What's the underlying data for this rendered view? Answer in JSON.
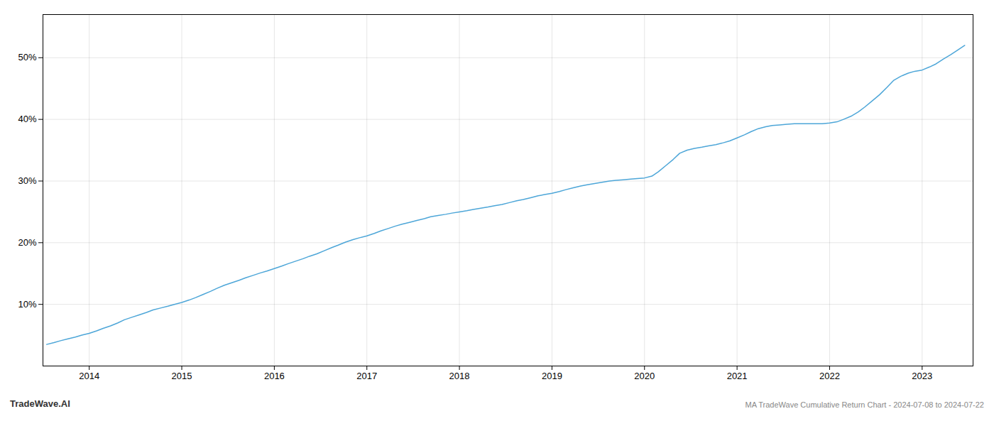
{
  "chart_data": {
    "type": "line",
    "title": "MA TradeWave Cumulative Return Chart - 2024-07-08 to 2024-07-22",
    "annotations": [
      "TradeWave.AI"
    ],
    "x": [
      2013.54,
      2013.62,
      2013.69,
      2013.77,
      2013.85,
      2013.92,
      2014.0,
      2014.08,
      2014.15,
      2014.23,
      2014.31,
      2014.38,
      2014.46,
      2014.54,
      2014.62,
      2014.69,
      2014.77,
      2014.85,
      2014.92,
      2015.0,
      2015.08,
      2015.15,
      2015.23,
      2015.31,
      2015.38,
      2015.46,
      2015.54,
      2015.62,
      2015.69,
      2015.77,
      2015.85,
      2015.92,
      2016.0,
      2016.08,
      2016.15,
      2016.23,
      2016.31,
      2016.38,
      2016.46,
      2016.54,
      2016.62,
      2016.69,
      2016.77,
      2016.85,
      2016.92,
      2017.0,
      2017.08,
      2017.15,
      2017.23,
      2017.31,
      2017.38,
      2017.46,
      2017.54,
      2017.62,
      2017.69,
      2017.77,
      2017.85,
      2017.92,
      2018.0,
      2018.08,
      2018.15,
      2018.23,
      2018.31,
      2018.38,
      2018.46,
      2018.54,
      2018.62,
      2018.69,
      2018.77,
      2018.85,
      2018.92,
      2019.0,
      2019.08,
      2019.15,
      2019.23,
      2019.31,
      2019.38,
      2019.46,
      2019.54,
      2019.62,
      2019.69,
      2019.77,
      2019.85,
      2019.92,
      2020.0,
      2020.08,
      2020.15,
      2020.23,
      2020.31,
      2020.38,
      2020.46,
      2020.54,
      2020.62,
      2020.69,
      2020.77,
      2020.85,
      2020.92,
      2021.0,
      2021.08,
      2021.15,
      2021.23,
      2021.31,
      2021.38,
      2021.46,
      2021.54,
      2021.62,
      2021.69,
      2021.77,
      2021.85,
      2021.92,
      2022.0,
      2022.08,
      2022.15,
      2022.23,
      2022.31,
      2022.38,
      2022.46,
      2022.54,
      2022.62,
      2022.69,
      2022.77,
      2022.85,
      2022.92,
      2023.0,
      2023.08,
      2023.15,
      2023.23,
      2023.31,
      2023.38,
      2023.46
    ],
    "values": [
      3.5,
      3.8,
      4.1,
      4.4,
      4.7,
      5.0,
      5.3,
      5.7,
      6.1,
      6.5,
      7.0,
      7.5,
      7.9,
      8.3,
      8.7,
      9.1,
      9.4,
      9.7,
      10.0,
      10.3,
      10.7,
      11.1,
      11.6,
      12.1,
      12.6,
      13.1,
      13.5,
      13.9,
      14.3,
      14.7,
      15.1,
      15.4,
      15.8,
      16.2,
      16.6,
      17.0,
      17.4,
      17.8,
      18.2,
      18.7,
      19.2,
      19.6,
      20.1,
      20.5,
      20.8,
      21.1,
      21.5,
      21.9,
      22.3,
      22.7,
      23.0,
      23.3,
      23.6,
      23.9,
      24.2,
      24.4,
      24.6,
      24.8,
      25.0,
      25.2,
      25.4,
      25.6,
      25.8,
      26.0,
      26.2,
      26.5,
      26.8,
      27.0,
      27.3,
      27.6,
      27.8,
      28.0,
      28.3,
      28.6,
      28.9,
      29.2,
      29.4,
      29.6,
      29.8,
      30.0,
      30.1,
      30.2,
      30.3,
      30.4,
      30.5,
      30.8,
      31.5,
      32.5,
      33.5,
      34.5,
      35.0,
      35.3,
      35.5,
      35.7,
      35.9,
      36.2,
      36.5,
      37.0,
      37.5,
      38.0,
      38.5,
      38.8,
      39.0,
      39.1,
      39.2,
      39.3,
      39.3,
      39.3,
      39.3,
      39.3,
      39.4,
      39.6,
      40.0,
      40.5,
      41.2,
      42.0,
      43.0,
      44.0,
      45.2,
      46.3,
      47.0,
      47.5,
      47.8,
      48.0,
      48.5,
      49.0,
      49.8,
      50.5,
      51.2,
      52.0
    ],
    "color": "#4da6d8",
    "xlim": [
      2013.5,
      2023.55
    ],
    "xticks": [
      2014,
      2015,
      2016,
      2017,
      2018,
      2019,
      2020,
      2021,
      2022,
      2023
    ],
    "ylim": [
      0,
      57
    ],
    "yticks": [
      {
        "value": 10,
        "label": "10%"
      },
      {
        "value": 20,
        "label": "20%"
      },
      {
        "value": 30,
        "label": "30%"
      },
      {
        "value": 40,
        "label": "40%"
      },
      {
        "value": 50,
        "label": "50%"
      }
    ],
    "grid": true
  }
}
